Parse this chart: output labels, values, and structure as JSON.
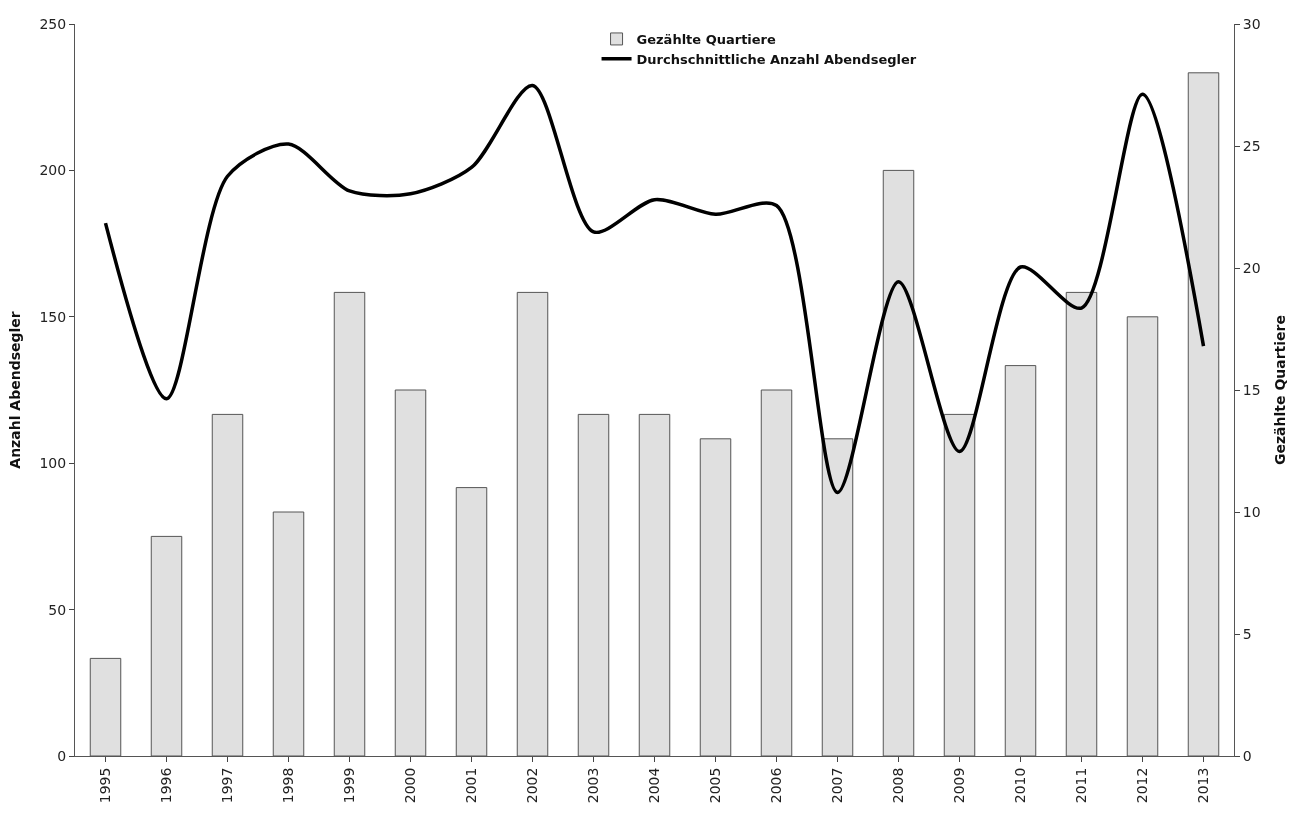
{
  "chart_data": {
    "type": "bar",
    "categories": [
      "1995",
      "1996",
      "1997",
      "1998",
      "1999",
      "2000",
      "2001",
      "2002",
      "2003",
      "2004",
      "2005",
      "2006",
      "2007",
      "2008",
      "2009",
      "2010",
      "2011",
      "2012",
      "2013"
    ],
    "series": [
      {
        "name": "Gezählte Quartiere",
        "axis": "y2",
        "color": "#e0e0e0",
        "values": [
          4,
          9,
          14,
          10,
          19,
          15,
          11,
          19,
          14,
          14,
          13,
          15,
          13,
          24,
          14,
          16,
          19,
          18,
          28
        ]
      },
      {
        "name": "Durchschnittliche Anzahl Abendsegler",
        "type": "line",
        "color": "#000000",
        "values": [
          182,
          122,
          198,
          209,
          193,
          192,
          201,
          229,
          179,
          190,
          185,
          188,
          90,
          162,
          104,
          167,
          153,
          226,
          140
        ]
      }
    ],
    "ylabel": "Anzahl Abendsegler",
    "y2label": "Gezählte Quartiere",
    "ylim": [
      0,
      250
    ],
    "yticks": [
      0,
      50,
      100,
      150,
      200,
      250
    ],
    "y2lim": [
      0,
      30
    ],
    "y2ticks": [
      0,
      5,
      10,
      15,
      20,
      25,
      30
    ],
    "legend": "top",
    "marker": "none",
    "line_style": "solid"
  }
}
